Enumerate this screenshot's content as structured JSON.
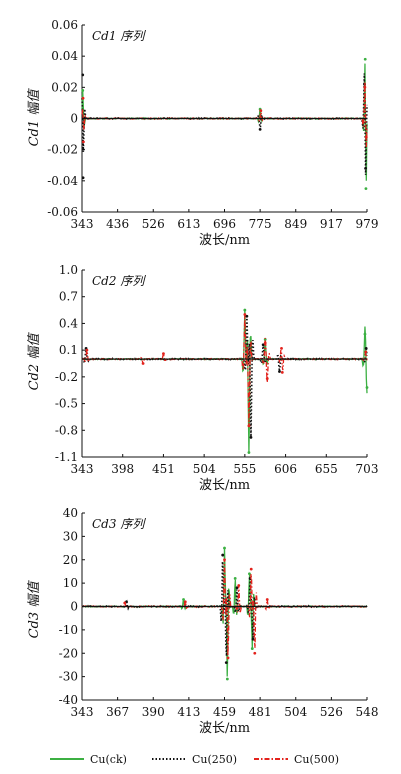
{
  "legend": [
    {
      "label": "Cu(ck)",
      "color": "#3cb043",
      "style": "solid"
    },
    {
      "label": "Cu(250)",
      "color": "#111111",
      "style": "dotted"
    },
    {
      "label": "Cu(500)",
      "color": "#e3221c",
      "style": "dashdot"
    }
  ],
  "chart_data": [
    {
      "type": "line",
      "panel_label": "Cd1 序列",
      "xlabel": "波长/nm",
      "ylabel": "Cd1 幅值",
      "x_ticks": [
        "343",
        "436",
        "526",
        "613",
        "696",
        "775",
        "849",
        "917",
        "979"
      ],
      "y_ticks": [
        "0.06",
        "0.04",
        "0.02",
        "0",
        "-0.02",
        "-0.04",
        "-0.06"
      ],
      "ylim": [
        -0.06,
        0.06
      ],
      "grid": false,
      "series": [
        {
          "name": "Cu(ck)",
          "color": "#3cb043",
          "peaks": [
            {
              "x_index": 0.02,
              "amp": 0.018
            },
            {
              "x_index": 5.0,
              "amp": 0.006
            },
            {
              "x_index": 7.95,
              "amp": 0.038
            },
            {
              "x_index": 7.97,
              "amp": -0.045
            }
          ]
        },
        {
          "name": "Cu(250)",
          "color": "#111111",
          "peaks": [
            {
              "x_index": 0.02,
              "amp": 0.028
            },
            {
              "x_index": 0.03,
              "amp": -0.038
            },
            {
              "x_index": 5.0,
              "amp": -0.007
            },
            {
              "x_index": 7.93,
              "amp": 0.022
            },
            {
              "x_index": 7.96,
              "amp": -0.032
            }
          ]
        },
        {
          "name": "Cu(500)",
          "color": "#e3221c",
          "peaks": [
            {
              "x_index": 0.03,
              "amp": 0.013
            },
            {
              "x_index": 0.04,
              "amp": -0.015
            },
            {
              "x_index": 5.02,
              "amp": 0.005
            },
            {
              "x_index": 7.94,
              "amp": 0.02
            },
            {
              "x_index": 7.98,
              "amp": -0.012
            }
          ]
        }
      ]
    },
    {
      "type": "line",
      "panel_label": "Cd2 序列",
      "xlabel": "波长/nm",
      "ylabel": "Cd2 幅值",
      "x_ticks": [
        "343",
        "398",
        "451",
        "504",
        "555",
        "606",
        "655",
        "703"
      ],
      "y_ticks": [
        "1.0",
        "0.7",
        "0.4",
        "0.1",
        "-0.2",
        "-0.5",
        "-0.8",
        "-1.1"
      ],
      "ylim": [
        -1.1,
        1.0
      ],
      "grid": false,
      "series": [
        {
          "name": "Cu(ck)",
          "color": "#3cb043",
          "peaks": [
            {
              "x_index": 4.0,
              "amp": 0.55
            },
            {
              "x_index": 4.1,
              "amp": -1.05
            },
            {
              "x_index": 4.5,
              "amp": 0.22
            },
            {
              "x_index": 6.95,
              "amp": 0.28
            },
            {
              "x_index": 7.0,
              "amp": -0.32
            }
          ]
        },
        {
          "name": "Cu(250)",
          "color": "#111111",
          "peaks": [
            {
              "x_index": 0.1,
              "amp": 0.12
            },
            {
              "x_index": 4.05,
              "amp": 0.48
            },
            {
              "x_index": 4.15,
              "amp": -0.88
            },
            {
              "x_index": 4.45,
              "amp": 0.16
            },
            {
              "x_index": 4.85,
              "amp": -0.14
            },
            {
              "x_index": 6.98,
              "amp": 0.12
            }
          ]
        },
        {
          "name": "Cu(500)",
          "color": "#e3221c",
          "peaks": [
            {
              "x_index": 0.12,
              "amp": 0.1
            },
            {
              "x_index": 1.5,
              "amp": -0.05
            },
            {
              "x_index": 2.0,
              "amp": 0.06
            },
            {
              "x_index": 4.0,
              "amp": 0.5
            },
            {
              "x_index": 4.1,
              "amp": -0.75
            },
            {
              "x_index": 4.5,
              "amp": 0.18
            },
            {
              "x_index": 4.55,
              "amp": -0.22
            },
            {
              "x_index": 4.9,
              "amp": 0.12
            },
            {
              "x_index": 4.92,
              "amp": -0.15
            },
            {
              "x_index": 6.97,
              "amp": 0.08
            }
          ]
        }
      ]
    },
    {
      "type": "line",
      "panel_label": "Cd3 序列",
      "xlabel": "波长/nm",
      "ylabel": "Cd3 幅值",
      "x_ticks": [
        "343",
        "367",
        "390",
        "413",
        "459",
        "481",
        "504",
        "526",
        "548"
      ],
      "y_ticks": [
        "40",
        "30",
        "20",
        "10",
        "0",
        "-10",
        "-20",
        "-30",
        "-40"
      ],
      "ylim": [
        -40,
        40
      ],
      "grid": false,
      "series": [
        {
          "name": "Cu(ck)",
          "color": "#3cb043",
          "peaks": [
            {
              "x_index": 2.85,
              "amp": 3
            },
            {
              "x_index": 4.0,
              "amp": 25
            },
            {
              "x_index": 4.08,
              "amp": -31
            },
            {
              "x_index": 4.3,
              "amp": 12
            },
            {
              "x_index": 4.7,
              "amp": 14
            },
            {
              "x_index": 4.78,
              "amp": -18
            }
          ]
        },
        {
          "name": "Cu(250)",
          "color": "#111111",
          "peaks": [
            {
              "x_index": 1.25,
              "amp": 2
            },
            {
              "x_index": 3.95,
              "amp": 22
            },
            {
              "x_index": 4.05,
              "amp": -24
            },
            {
              "x_index": 4.35,
              "amp": 8
            },
            {
              "x_index": 4.72,
              "amp": 12
            },
            {
              "x_index": 4.8,
              "amp": -14
            }
          ]
        },
        {
          "name": "Cu(500)",
          "color": "#e3221c",
          "peaks": [
            {
              "x_index": 1.2,
              "amp": 1.5
            },
            {
              "x_index": 2.9,
              "amp": 2
            },
            {
              "x_index": 4.0,
              "amp": 20
            },
            {
              "x_index": 4.1,
              "amp": -22
            },
            {
              "x_index": 4.4,
              "amp": 9
            },
            {
              "x_index": 4.75,
              "amp": 16
            },
            {
              "x_index": 4.85,
              "amp": -20
            },
            {
              "x_index": 5.2,
              "amp": 3
            }
          ]
        }
      ]
    }
  ]
}
